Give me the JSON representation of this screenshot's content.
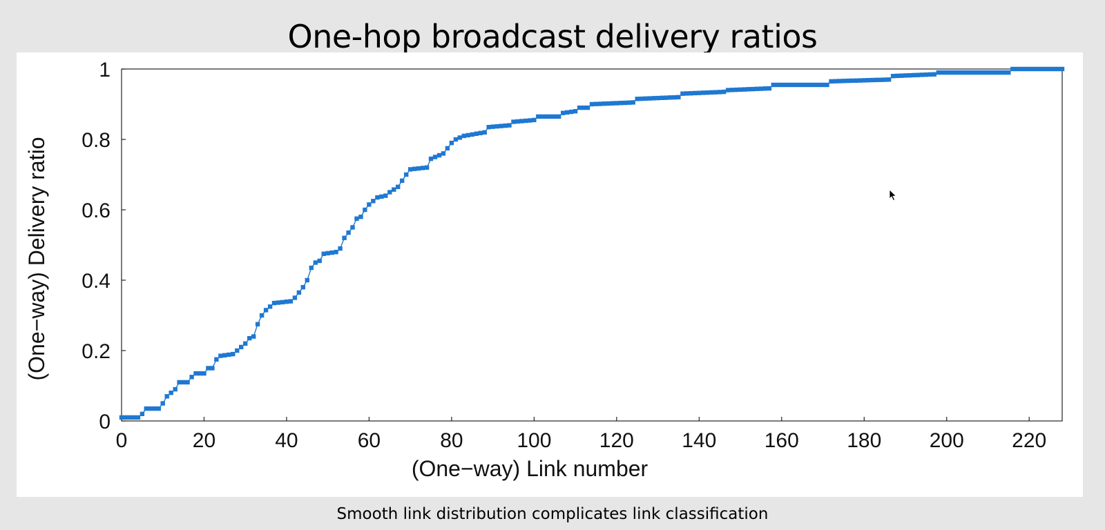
{
  "slide": {
    "title": "One-hop broadcast delivery ratios",
    "caption": "Smooth link distribution complicates link classification"
  },
  "chart_data": {
    "type": "line",
    "xlabel": "(One−way) Link number",
    "ylabel": "(One−way) Delivery ratio",
    "xlim": [
      0,
      228
    ],
    "ylim": [
      0,
      1
    ],
    "x_ticks": [
      "0",
      "20",
      "40",
      "60",
      "80",
      "100",
      "120",
      "140",
      "160",
      "180",
      "200",
      "220"
    ],
    "y_ticks": [
      "0",
      "0.2",
      "0.4",
      "0.6",
      "0.8",
      "1"
    ],
    "grid": false,
    "series": [
      {
        "color": "#1f78d1",
        "points": [
          [
            0,
            0.01
          ],
          [
            4,
            0.01
          ],
          [
            5,
            0.02
          ],
          [
            6,
            0.035
          ],
          [
            9,
            0.035
          ],
          [
            10,
            0.05
          ],
          [
            11,
            0.07
          ],
          [
            13,
            0.09
          ],
          [
            14,
            0.11
          ],
          [
            16,
            0.11
          ],
          [
            17,
            0.125
          ],
          [
            18,
            0.135
          ],
          [
            20,
            0.135
          ],
          [
            21,
            0.15
          ],
          [
            22,
            0.15
          ],
          [
            23,
            0.175
          ],
          [
            24,
            0.185
          ],
          [
            27,
            0.19
          ],
          [
            28,
            0.2
          ],
          [
            29,
            0.21
          ],
          [
            30,
            0.22
          ],
          [
            31,
            0.235
          ],
          [
            32,
            0.24
          ],
          [
            33,
            0.275
          ],
          [
            34,
            0.3
          ],
          [
            35,
            0.315
          ],
          [
            36,
            0.325
          ],
          [
            37,
            0.335
          ],
          [
            41,
            0.34
          ],
          [
            42,
            0.35
          ],
          [
            43,
            0.365
          ],
          [
            44,
            0.38
          ],
          [
            45,
            0.4
          ],
          [
            46,
            0.435
          ],
          [
            47,
            0.45
          ],
          [
            48,
            0.455
          ],
          [
            49,
            0.475
          ],
          [
            52,
            0.48
          ],
          [
            53,
            0.49
          ],
          [
            54,
            0.52
          ],
          [
            55,
            0.535
          ],
          [
            56,
            0.55
          ],
          [
            57,
            0.575
          ],
          [
            58,
            0.58
          ],
          [
            59,
            0.6
          ],
          [
            60,
            0.615
          ],
          [
            61,
            0.625
          ],
          [
            62,
            0.635
          ],
          [
            64,
            0.64
          ],
          [
            65,
            0.65
          ],
          [
            67,
            0.665
          ],
          [
            69,
            0.7
          ],
          [
            70,
            0.715
          ],
          [
            74,
            0.72
          ],
          [
            75,
            0.745
          ],
          [
            76,
            0.75
          ],
          [
            78,
            0.76
          ],
          [
            79,
            0.775
          ],
          [
            80,
            0.79
          ],
          [
            81,
            0.8
          ],
          [
            83,
            0.81
          ],
          [
            88,
            0.82
          ],
          [
            89,
            0.835
          ],
          [
            94,
            0.84
          ],
          [
            95,
            0.85
          ],
          [
            100,
            0.855
          ],
          [
            101,
            0.865
          ],
          [
            106,
            0.865
          ],
          [
            107,
            0.875
          ],
          [
            110,
            0.88
          ],
          [
            111,
            0.89
          ],
          [
            113,
            0.89
          ],
          [
            114,
            0.9
          ],
          [
            124,
            0.905
          ],
          [
            125,
            0.915
          ],
          [
            135,
            0.92
          ],
          [
            136,
            0.93
          ],
          [
            146,
            0.935
          ],
          [
            147,
            0.94
          ],
          [
            157,
            0.945
          ],
          [
            158,
            0.955
          ],
          [
            171,
            0.955
          ],
          [
            172,
            0.965
          ],
          [
            186,
            0.97
          ],
          [
            187,
            0.98
          ],
          [
            197,
            0.985
          ],
          [
            198,
            0.99
          ],
          [
            215,
            0.99
          ],
          [
            216,
            1.0
          ],
          [
            228,
            1.0
          ]
        ]
      }
    ]
  }
}
